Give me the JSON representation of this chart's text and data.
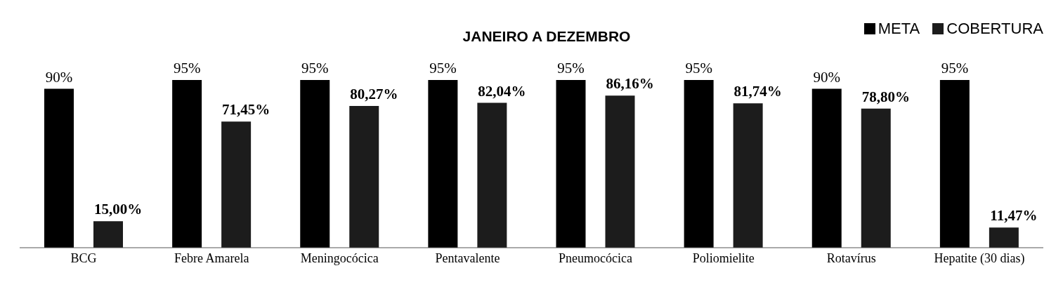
{
  "chart_data": {
    "type": "bar",
    "title": "JANEIRO A DEZEMBRO",
    "categories": [
      "BCG",
      "Febre Amarela",
      "Meningocócica",
      "Pentavalente",
      "Pneumocócica",
      "Poliomielite",
      "Rotavírus",
      "Hepatite (30 dias)"
    ],
    "series": [
      {
        "name": "META",
        "color": "#000000",
        "values": [
          90,
          95,
          95,
          95,
          95,
          95,
          90,
          95
        ],
        "value_labels": [
          "90%",
          "95%",
          "95%",
          "95%",
          "95%",
          "95%",
          "90%",
          "95%"
        ]
      },
      {
        "name": "COBERTURA",
        "color": "#1c1c1c",
        "values": [
          15.0,
          71.45,
          80.27,
          82.04,
          86.16,
          81.74,
          78.8,
          11.47
        ],
        "value_labels": [
          "15,00%",
          "71,45%",
          "80,27%",
          "82,04%",
          "86,16%",
          "81,74%",
          "78,80%",
          "11,47%"
        ]
      }
    ],
    "legend": "top right"
  }
}
